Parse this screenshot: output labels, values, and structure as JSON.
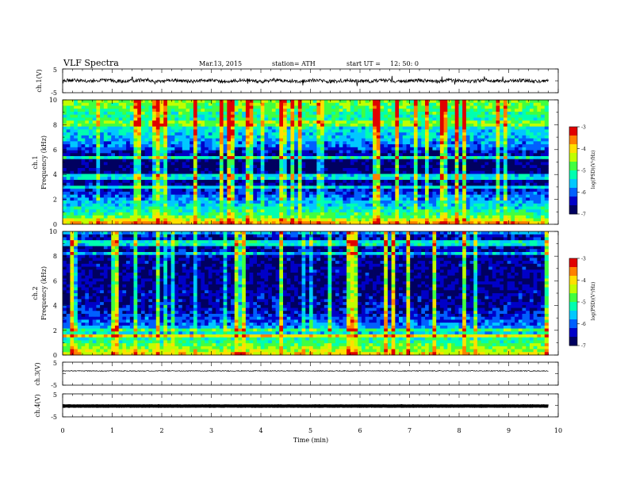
{
  "header": {
    "title": "VLF  Spectra",
    "date": "Mar.13, 2015",
    "station": "station= ATH",
    "start_label": "start  UT  =",
    "start_time": "12: 50: 0"
  },
  "colors": {
    "spectrum_scale": [
      "#000060",
      "#0000c8",
      "#0060ff",
      "#00c8ff",
      "#00ffb0",
      "#40ff40",
      "#c0ff00",
      "#ffe000",
      "#ff8000",
      "#e00000",
      "#ffffff"
    ],
    "trace": "#000000",
    "frame": "#000000"
  },
  "chart_data": [
    {
      "type": "line",
      "name": "ch1-waveform",
      "ylabel": "ch.1(V)",
      "ylim": [
        -5,
        5
      ],
      "yticks": [
        "5",
        "-5"
      ],
      "xlim": [
        0,
        10
      ],
      "trace_level": 0.0,
      "trace_noise": "high",
      "data_end_min": 9.8
    },
    {
      "type": "heatmap",
      "name": "ch1-spectrogram",
      "ylabel": [
        "ch.1",
        "Frequency  (kHz)"
      ],
      "ylim": [
        0,
        10
      ],
      "yticks": [
        "0",
        "2",
        "4",
        "6",
        "8",
        "10"
      ],
      "xlim": [
        0,
        10
      ],
      "data_end_min": 9.8,
      "colorbar": {
        "label": "log(PSD)(V²/Hz)",
        "range": [
          -7,
          -3
        ],
        "ticks": [
          "-3",
          "-4",
          "-5",
          "-6",
          "-7"
        ]
      },
      "profile_khz_logpsd": [
        [
          0,
          -3.6
        ],
        [
          0.3,
          -4.2
        ],
        [
          0.6,
          -4.8
        ],
        [
          1.0,
          -5.2
        ],
        [
          1.5,
          -5.5
        ],
        [
          2.0,
          -5.8
        ],
        [
          2.5,
          -6.2
        ],
        [
          3.0,
          -6.5
        ],
        [
          4.0,
          -6.8
        ],
        [
          5.0,
          -6.8
        ],
        [
          5.8,
          -6.5
        ],
        [
          6.2,
          -6.0
        ],
        [
          7.0,
          -5.6
        ],
        [
          8.0,
          -5.3
        ],
        [
          9.0,
          -5.0
        ],
        [
          10.0,
          -4.6
        ]
      ]
    },
    {
      "type": "heatmap",
      "name": "ch2-spectrogram",
      "ylabel": [
        "ch.2",
        "Frequency  (kHz)"
      ],
      "ylim": [
        0,
        10
      ],
      "yticks": [
        "0",
        "2",
        "4",
        "6",
        "8",
        "10"
      ],
      "xlim": [
        0,
        10
      ],
      "data_end_min": 9.8,
      "colorbar": {
        "label": "log(PSD)(V²/Hz)",
        "range": [
          -7,
          -3
        ],
        "ticks": [
          "-3",
          "-4",
          "-5",
          "-6",
          "-7"
        ]
      },
      "profile_khz_logpsd": [
        [
          0,
          -4.0
        ],
        [
          0.5,
          -4.6
        ],
        [
          1.0,
          -5.0
        ],
        [
          1.5,
          -5.3
        ],
        [
          2.0,
          -5.6
        ],
        [
          2.5,
          -5.9
        ],
        [
          3.0,
          -6.2
        ],
        [
          3.5,
          -6.4
        ],
        [
          4.0,
          -6.5
        ],
        [
          5.0,
          -6.6
        ],
        [
          6.0,
          -6.7
        ],
        [
          7.0,
          -6.6
        ],
        [
          8.0,
          -6.6
        ],
        [
          9.0,
          -6.5
        ],
        [
          10.0,
          -6.4
        ]
      ]
    },
    {
      "type": "line",
      "name": "ch3-waveform",
      "ylabel": "ch.3(V)",
      "ylim": [
        -5,
        5
      ],
      "yticks": [
        "5",
        "-5"
      ],
      "xlim": [
        0,
        10
      ],
      "trace_level": 1.2,
      "trace_noise": "low",
      "data_end_min": 9.8
    },
    {
      "type": "line",
      "name": "ch4-waveform",
      "ylabel": "ch.4(V)",
      "ylim": [
        -5,
        5
      ],
      "yticks": [
        "5",
        "-5"
      ],
      "xlim": [
        0,
        10
      ],
      "trace_level": -0.3,
      "trace_noise": "thick",
      "data_end_min": 9.8
    }
  ],
  "x_axis": {
    "label": "Time  (min)",
    "ticks": [
      "0",
      "1",
      "2",
      "3",
      "4",
      "5",
      "6",
      "7",
      "8",
      "9",
      "10"
    ],
    "range": [
      0,
      10
    ]
  }
}
